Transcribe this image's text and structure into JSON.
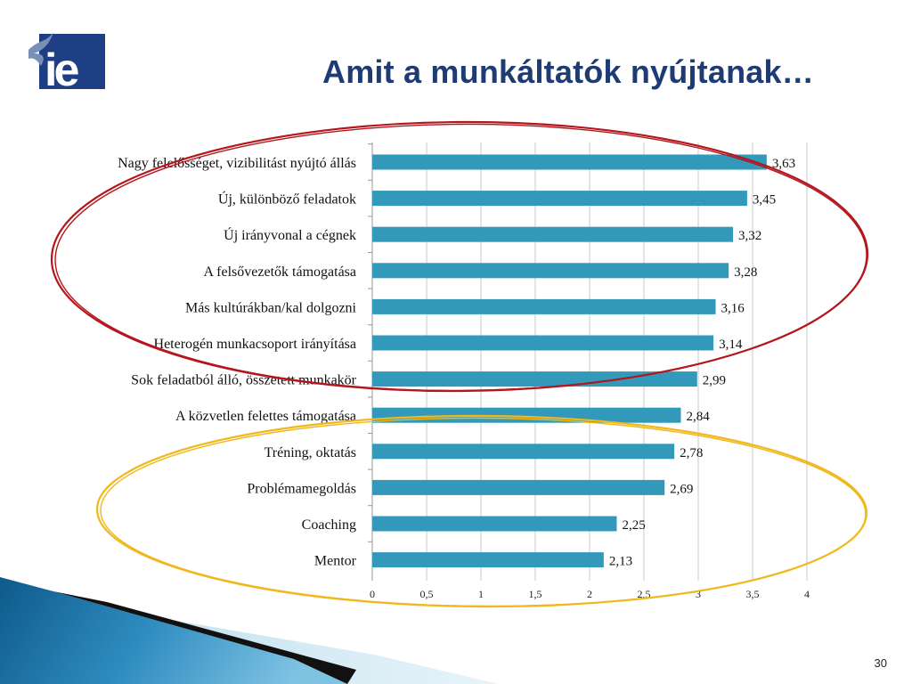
{
  "slide": {
    "title": "Amit a munkáltatók nyújtanak…",
    "page_number": "30",
    "logo_text": "ie"
  },
  "colors": {
    "bar": "#3399bb",
    "title": "#1f3b73",
    "logo_bg": "#1e3f84",
    "red_ellipse": "#b3161c",
    "yellow_ellipse": "#f0b81c",
    "grid": "#c8c8c8"
  },
  "chart_data": {
    "type": "bar",
    "orientation": "horizontal",
    "categories": [
      "Nagy felelősséget, vizibilitást nyújtó állás",
      "Új, különböző feladatok",
      "Új irányvonal a cégnek",
      "A felsővezetők támogatása",
      "Más kultúrákban/kal dolgozni",
      "Heterogén munkacsoport irányítása",
      "Sok feladatból álló, összetett munkakör",
      "A közvetlen felettes támogatása",
      "Tréning, oktatás",
      "Problémamegoldás",
      "Coaching",
      "Mentor"
    ],
    "values": [
      3.63,
      3.45,
      3.32,
      3.28,
      3.16,
      3.14,
      2.99,
      2.84,
      2.78,
      2.69,
      2.25,
      2.13
    ],
    "value_labels": [
      "3,63",
      "3,45",
      "3,32",
      "3,28",
      "3,16",
      "3,14",
      "2,99",
      "2,84",
      "2,78",
      "2,69",
      "2,25",
      "2,13"
    ],
    "xlim": [
      0,
      4
    ],
    "xticks": [
      0,
      0.5,
      1,
      1.5,
      2,
      2.5,
      3,
      3.5,
      4
    ],
    "xtick_labels": [
      "0",
      "0,5",
      "1",
      "1,5",
      "2",
      "2,5",
      "3",
      "3,5",
      "4"
    ],
    "grid": true,
    "highlight_groups": [
      {
        "color": "red",
        "items": [
          "Nagy felelősséget, vizibilitást nyújtó állás",
          "Új, különböző feladatok",
          "Új irányvonal a cégnek",
          "A felsővezetők támogatása",
          "Más kultúrákban/kal dolgozni",
          "Heterogén munkacsoport irányítása"
        ]
      },
      {
        "color": "yellow",
        "items": [
          "Tréning, oktatás",
          "Problémamegoldás",
          "Coaching",
          "Mentor"
        ]
      }
    ]
  }
}
